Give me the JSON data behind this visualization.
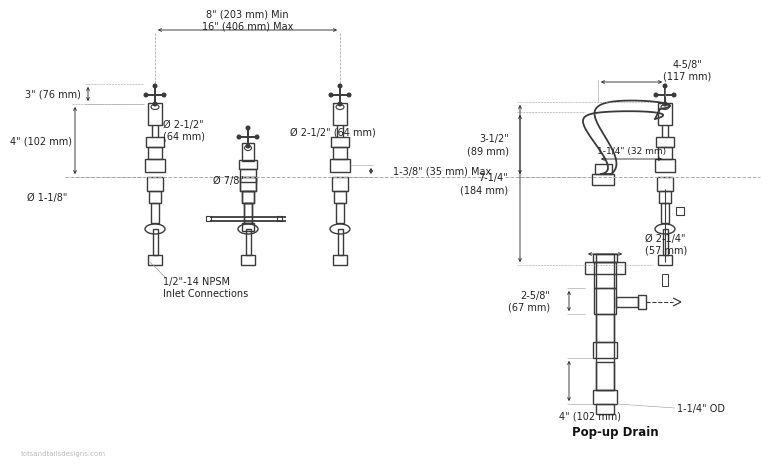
{
  "bg_color": "#ffffff",
  "line_color": "#3a3a3a",
  "dim_color": "#222222",
  "annotations": {
    "top_span": "8\" (203 mm) Min\n16\" (406 mm) Max",
    "left_3": "3\" (76 mm)",
    "left_4": "4\" (102 mm)",
    "dia_1_1_8": "Ø 1-1/8\"",
    "dia_7_8": "Ø 7/8\"",
    "dia_2_1_2_left": "Ø 2-1/2\"\n(64 mm)",
    "dia_2_1_2_right": "Ø 2-1/2\" (64 mm)",
    "dim_1_3_8": "1-3/8\" (35 mm) Max",
    "dim_3_1_2": "3-1/2\"\n(89 mm)",
    "dim_1_1_4_32": "1-1/4\" (32 mm)",
    "dim_7_1_4": "7-1/4\"\n(184 mm)",
    "dim_4_5_8": "4-5/8\"\n(117 mm)",
    "dia_2_1_4": "Ø 2-1/4\"\n(57 mm)",
    "dim_2_5_8": "2-5/8\"\n(67 mm)",
    "dim_4_102": "4\" (102 mm)",
    "dim_1_1_4_OD": "1-1/4\" OD",
    "label_npsm": "1/2\"-14 NPSM\nInlet Connections",
    "label_popup": "Pop-up Drain",
    "watermark": "totsandtailsdesigns.com"
  }
}
